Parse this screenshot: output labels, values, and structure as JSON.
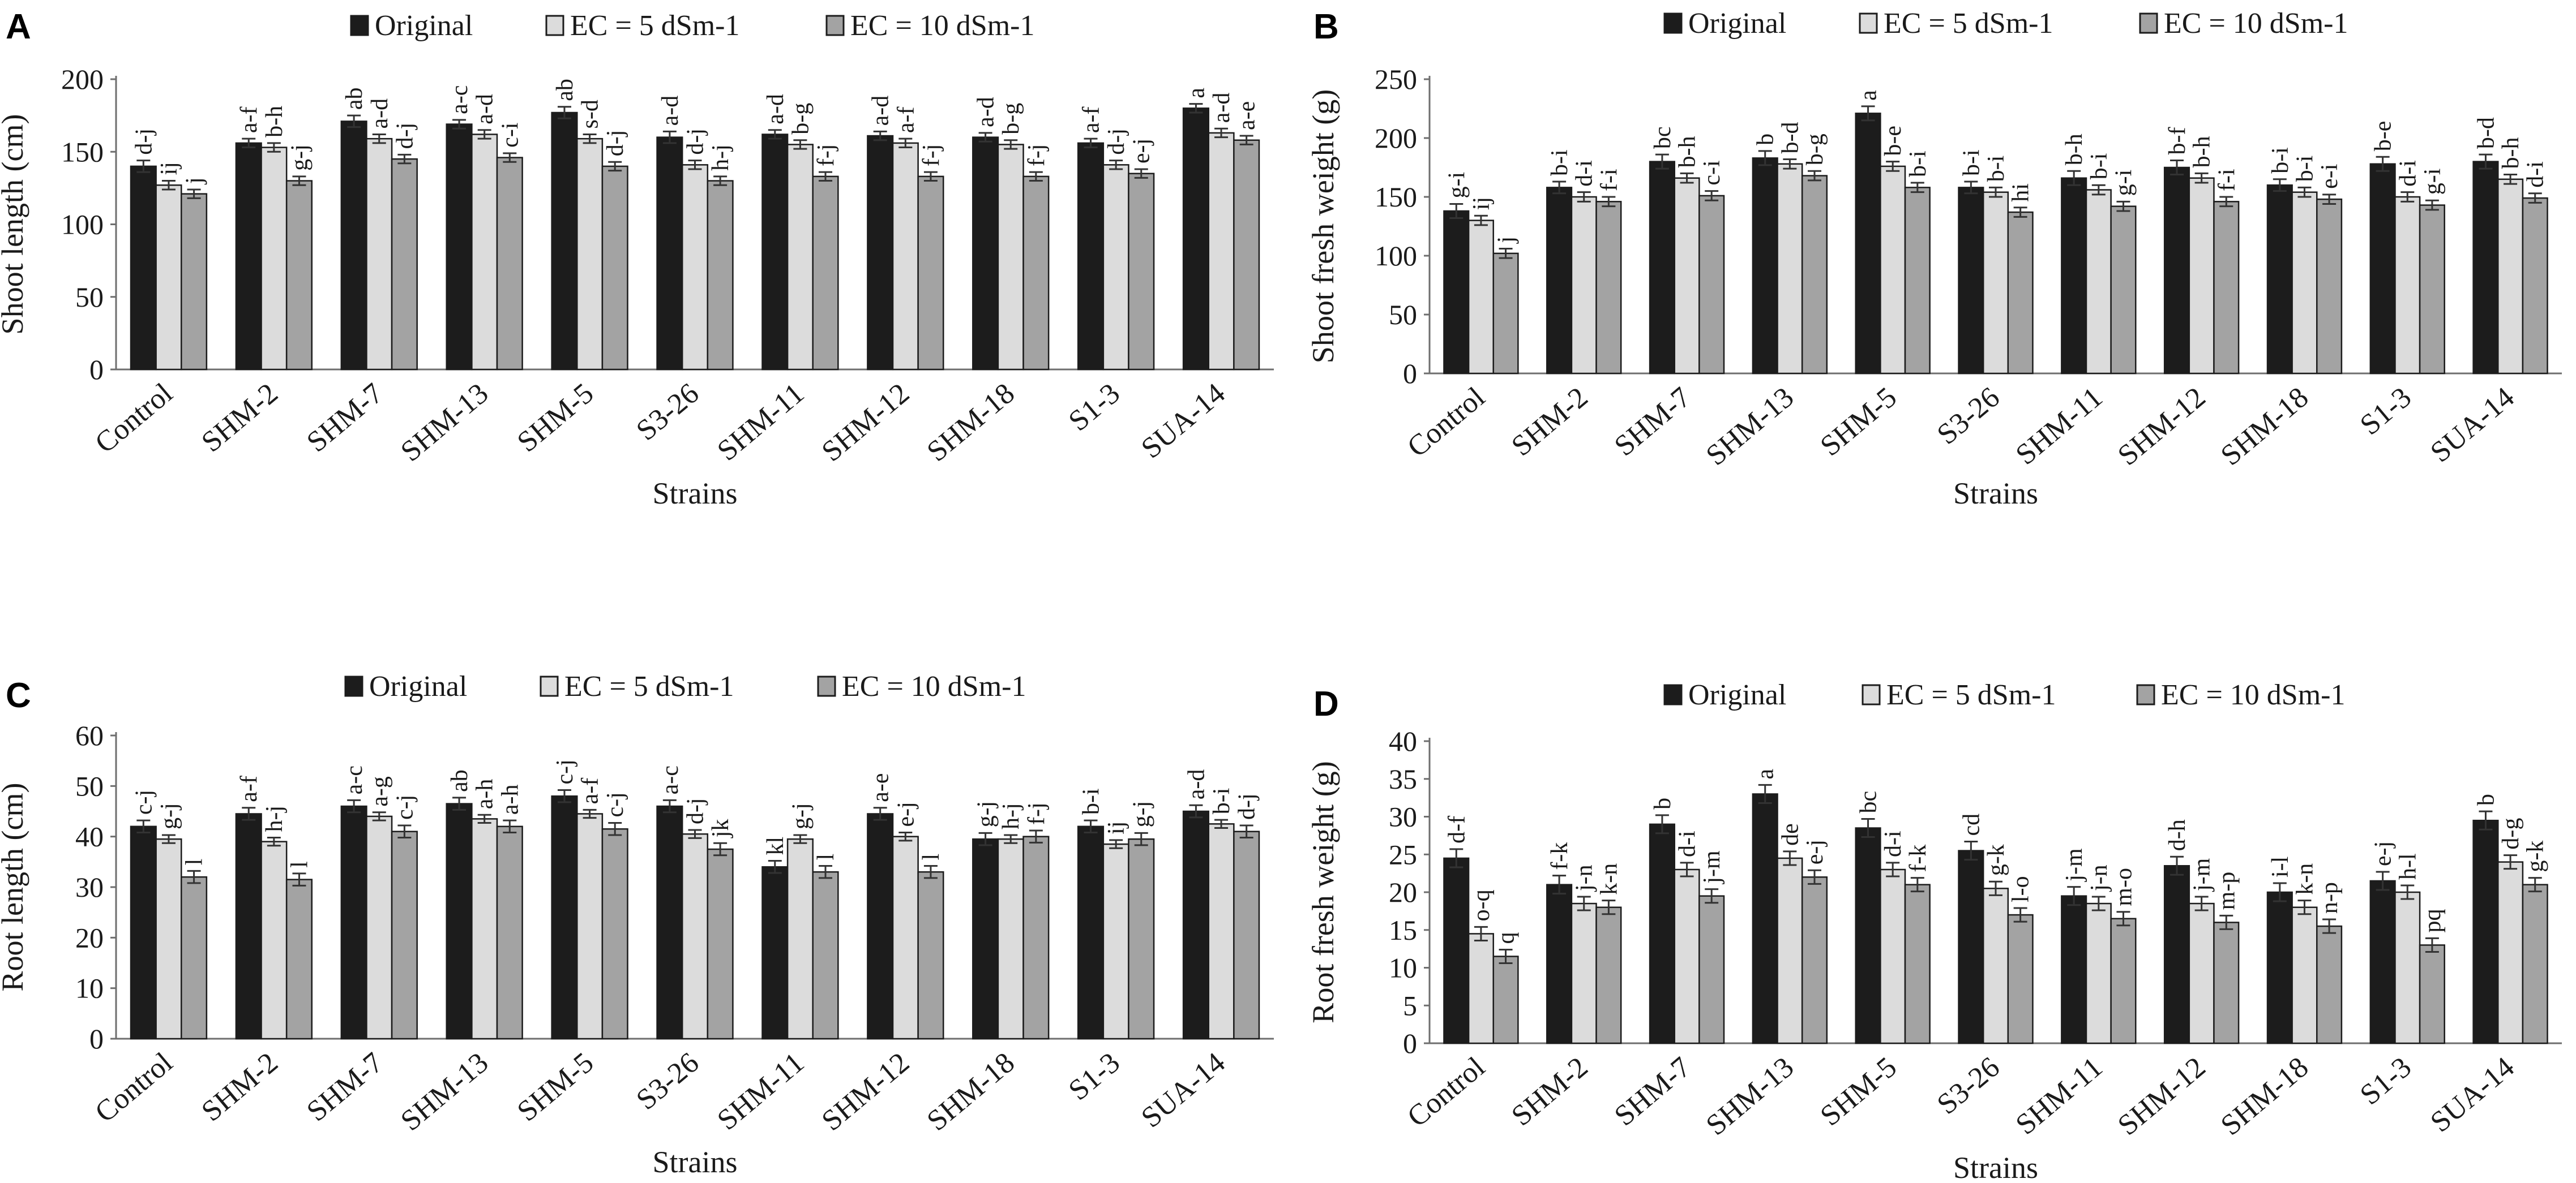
{
  "colors": {
    "original": "#1c1c1c",
    "ec5": "#dcdcdc",
    "ec10": "#a3a3a3",
    "axis": "#6e6e6e",
    "text": "#1a1a1a"
  },
  "legend": [
    "Original",
    "EC = 5 dSm-1",
    "EC = 10 dSm-1"
  ],
  "x_title": "Strains",
  "chart_data": [
    {
      "type": "bar",
      "panel": "A",
      "ylabel": "Shoot length (cm)",
      "xlabel": "Strains",
      "ylim": [
        0,
        200
      ],
      "yticks": [
        0,
        50,
        100,
        150,
        200
      ],
      "categories": [
        "Control",
        "SHM-2",
        "SHM-7",
        "SHM-13",
        "SHM-5",
        "S3-26",
        "SHM-11",
        "SHM-12",
        "SHM-18",
        "S1-3",
        "SUA-14"
      ],
      "series": [
        {
          "name": "Original",
          "values": [
            140,
            156,
            171,
            169,
            177,
            160,
            162,
            161,
            160,
            156,
            180
          ],
          "errors": [
            4,
            3,
            4,
            3,
            4,
            4,
            3,
            3,
            3,
            3,
            3
          ],
          "labels": [
            "d-j",
            "a-f",
            "ab",
            "a-c",
            "ab",
            "a-d",
            "a-d",
            "a-d",
            "a-d",
            "a-f",
            "a"
          ]
        },
        {
          "name": "EC = 5 dSm-1",
          "values": [
            127,
            153,
            159,
            162,
            159,
            141,
            155,
            156,
            155,
            141,
            163
          ],
          "errors": [
            3,
            3,
            3,
            3,
            3,
            3,
            3,
            3,
            3,
            3,
            3
          ],
          "labels": [
            "ij",
            "b-h",
            "a-d",
            "a-d",
            "s-d",
            "d-j",
            "b-g",
            "a-f",
            "b-g",
            "d-j",
            "a-d"
          ]
        },
        {
          "name": "EC = 10 dSm-1",
          "values": [
            121,
            130,
            145,
            146,
            140,
            130,
            133,
            133,
            133,
            135,
            158
          ],
          "errors": [
            3,
            3,
            3,
            3,
            3,
            3,
            3,
            3,
            3,
            3,
            3
          ],
          "labels": [
            "j",
            "g-j",
            "d-j",
            "c-i",
            "d-j",
            "h-j",
            "f-j",
            "f-j",
            "f-j",
            "e-j",
            "a-e"
          ]
        }
      ]
    },
    {
      "type": "bar",
      "panel": "B",
      "ylabel": "Shoot fresh weight (g)",
      "xlabel": "Strains",
      "ylim": [
        0,
        250
      ],
      "yticks": [
        0,
        50,
        100,
        150,
        200,
        250
      ],
      "categories": [
        "Control",
        "SHM-2",
        "SHM-7",
        "SHM-13",
        "SHM-5",
        "S3-26",
        "SHM-11",
        "SHM-12",
        "SHM-18",
        "S1-3",
        "SUA-14"
      ],
      "series": [
        {
          "name": "Original",
          "values": [
            138,
            158,
            180,
            183,
            221,
            158,
            166,
            175,
            160,
            178,
            180
          ],
          "errors": [
            6,
            5,
            6,
            6,
            6,
            5,
            6,
            6,
            5,
            6,
            6
          ],
          "labels": [
            "g-i",
            "b-i",
            "bc",
            "b",
            "a",
            "b-i",
            "b-h",
            "b-f",
            "b-i",
            "b-e",
            "b-d"
          ]
        },
        {
          "name": "EC = 5 dSm-1",
          "values": [
            130,
            150,
            166,
            178,
            176,
            154,
            156,
            166,
            154,
            150,
            165
          ],
          "errors": [
            4,
            4,
            4,
            4,
            4,
            4,
            4,
            4,
            4,
            4,
            4
          ],
          "labels": [
            "ij",
            "d-i",
            "b-h",
            "b-d",
            "b-e",
            "b-i",
            "b-i",
            "b-h",
            "b-i",
            "d-i",
            "b-h"
          ]
        },
        {
          "name": "EC = 10 dSm-1",
          "values": [
            102,
            146,
            151,
            168,
            158,
            137,
            142,
            146,
            148,
            143,
            149
          ],
          "errors": [
            4,
            4,
            4,
            4,
            4,
            4,
            4,
            4,
            4,
            4,
            4
          ],
          "labels": [
            "j",
            "f-i",
            "c-i",
            "b-g",
            "b-i",
            "hi",
            "g-i",
            "f-i",
            "e-i",
            "g-i",
            "d-i"
          ]
        }
      ]
    },
    {
      "type": "bar",
      "panel": "C",
      "ylabel": "Root length (cm)",
      "xlabel": "Strains",
      "ylim": [
        0,
        60
      ],
      "yticks": [
        0,
        10,
        20,
        30,
        40,
        50,
        60
      ],
      "categories": [
        "Control",
        "SHM-2",
        "SHM-7",
        "SHM-13",
        "SHM-5",
        "S3-26",
        "SHM-11",
        "SHM-12",
        "SHM-18",
        "S1-3",
        "SUA-14"
      ],
      "series": [
        {
          "name": "Original",
          "values": [
            42,
            44.5,
            46,
            46.5,
            48,
            46,
            34,
            44.5,
            39.5,
            42,
            45
          ],
          "errors": [
            1.2,
            1.2,
            1.2,
            1.2,
            1.2,
            1.2,
            1.2,
            1.2,
            1.2,
            1.2,
            1.2
          ],
          "labels": [
            "c-j",
            "a-f",
            "a-c",
            "ab",
            "c-j",
            "a-c",
            "kl",
            "a-e",
            "g-j",
            "b-i",
            "a-d"
          ]
        },
        {
          "name": "EC = 5 dSm-1",
          "values": [
            39.5,
            39,
            44,
            43.5,
            44.5,
            40.5,
            39.5,
            40,
            39.5,
            38.5,
            42.5
          ],
          "errors": [
            0.8,
            0.8,
            0.8,
            0.8,
            0.8,
            0.8,
            0.8,
            0.8,
            0.8,
            0.8,
            0.8
          ],
          "labels": [
            "g-j",
            "h-j",
            "a-g",
            "a-h",
            "a-f",
            "d-j",
            "g-j",
            "e-j",
            "h-j",
            "ij",
            "b-i"
          ]
        },
        {
          "name": "EC = 10 dSm-1",
          "values": [
            32,
            31.5,
            41,
            42,
            41.5,
            37.5,
            33,
            33,
            40,
            39.5,
            41
          ],
          "errors": [
            1.2,
            1.2,
            1.2,
            1.2,
            1.2,
            1.2,
            1.2,
            1.2,
            1.2,
            1.2,
            1.2
          ],
          "labels": [
            "l",
            "l",
            "c-j",
            "a-h",
            "c-j",
            "jk",
            "l",
            "l",
            "f-j",
            "g-j",
            "d-j"
          ]
        }
      ]
    },
    {
      "type": "bar",
      "panel": "D",
      "ylabel": "Root fresh weight (g)",
      "xlabel": "Strains",
      "ylim": [
        0,
        40
      ],
      "yticks": [
        0,
        5,
        10,
        15,
        20,
        25,
        30,
        35,
        40
      ],
      "categories": [
        "Control",
        "SHM-2",
        "SHM-7",
        "SHM-13",
        "SHM-5",
        "S3-26",
        "SHM-11",
        "SHM-12",
        "SHM-18",
        "S1-3",
        "SUA-14"
      ],
      "series": [
        {
          "name": "Original",
          "values": [
            24.5,
            21,
            29,
            33,
            28.5,
            25.5,
            19.5,
            23.5,
            20,
            21.5,
            29.5
          ],
          "errors": [
            1.2,
            1.2,
            1.2,
            1.2,
            1.2,
            1.2,
            1.2,
            1.2,
            1.2,
            1.2,
            1.2
          ],
          "labels": [
            "d-f",
            "f-k",
            "b",
            "a",
            "bc",
            "cd",
            "j-m",
            "d-h",
            "i-l",
            "e-j",
            "b"
          ]
        },
        {
          "name": "EC = 5 dSm-1",
          "values": [
            14.5,
            18.5,
            23,
            24.5,
            23,
            20.5,
            18.5,
            18.5,
            18,
            20,
            24
          ],
          "errors": [
            0.9,
            0.9,
            0.9,
            0.9,
            0.9,
            0.9,
            0.9,
            0.9,
            0.9,
            0.9,
            0.9
          ],
          "labels": [
            "o-q",
            "j-n",
            "d-i",
            "de",
            "d-i",
            "g-k",
            "j-n",
            "j-m",
            "k-n",
            "h-l",
            "d-g"
          ]
        },
        {
          "name": "EC = 10 dSm-1",
          "values": [
            11.5,
            18,
            19.5,
            22,
            21,
            17,
            16.5,
            16,
            15.5,
            13,
            21
          ],
          "errors": [
            0.9,
            0.9,
            0.9,
            0.9,
            0.9,
            0.9,
            0.9,
            0.9,
            0.9,
            0.9,
            0.9
          ],
          "labels": [
            "q",
            "k-n",
            "j-m",
            "e-j",
            "f-k",
            "l-o",
            "m-o",
            "m-p",
            "n-p",
            "pq",
            "g-k"
          ]
        }
      ]
    }
  ]
}
